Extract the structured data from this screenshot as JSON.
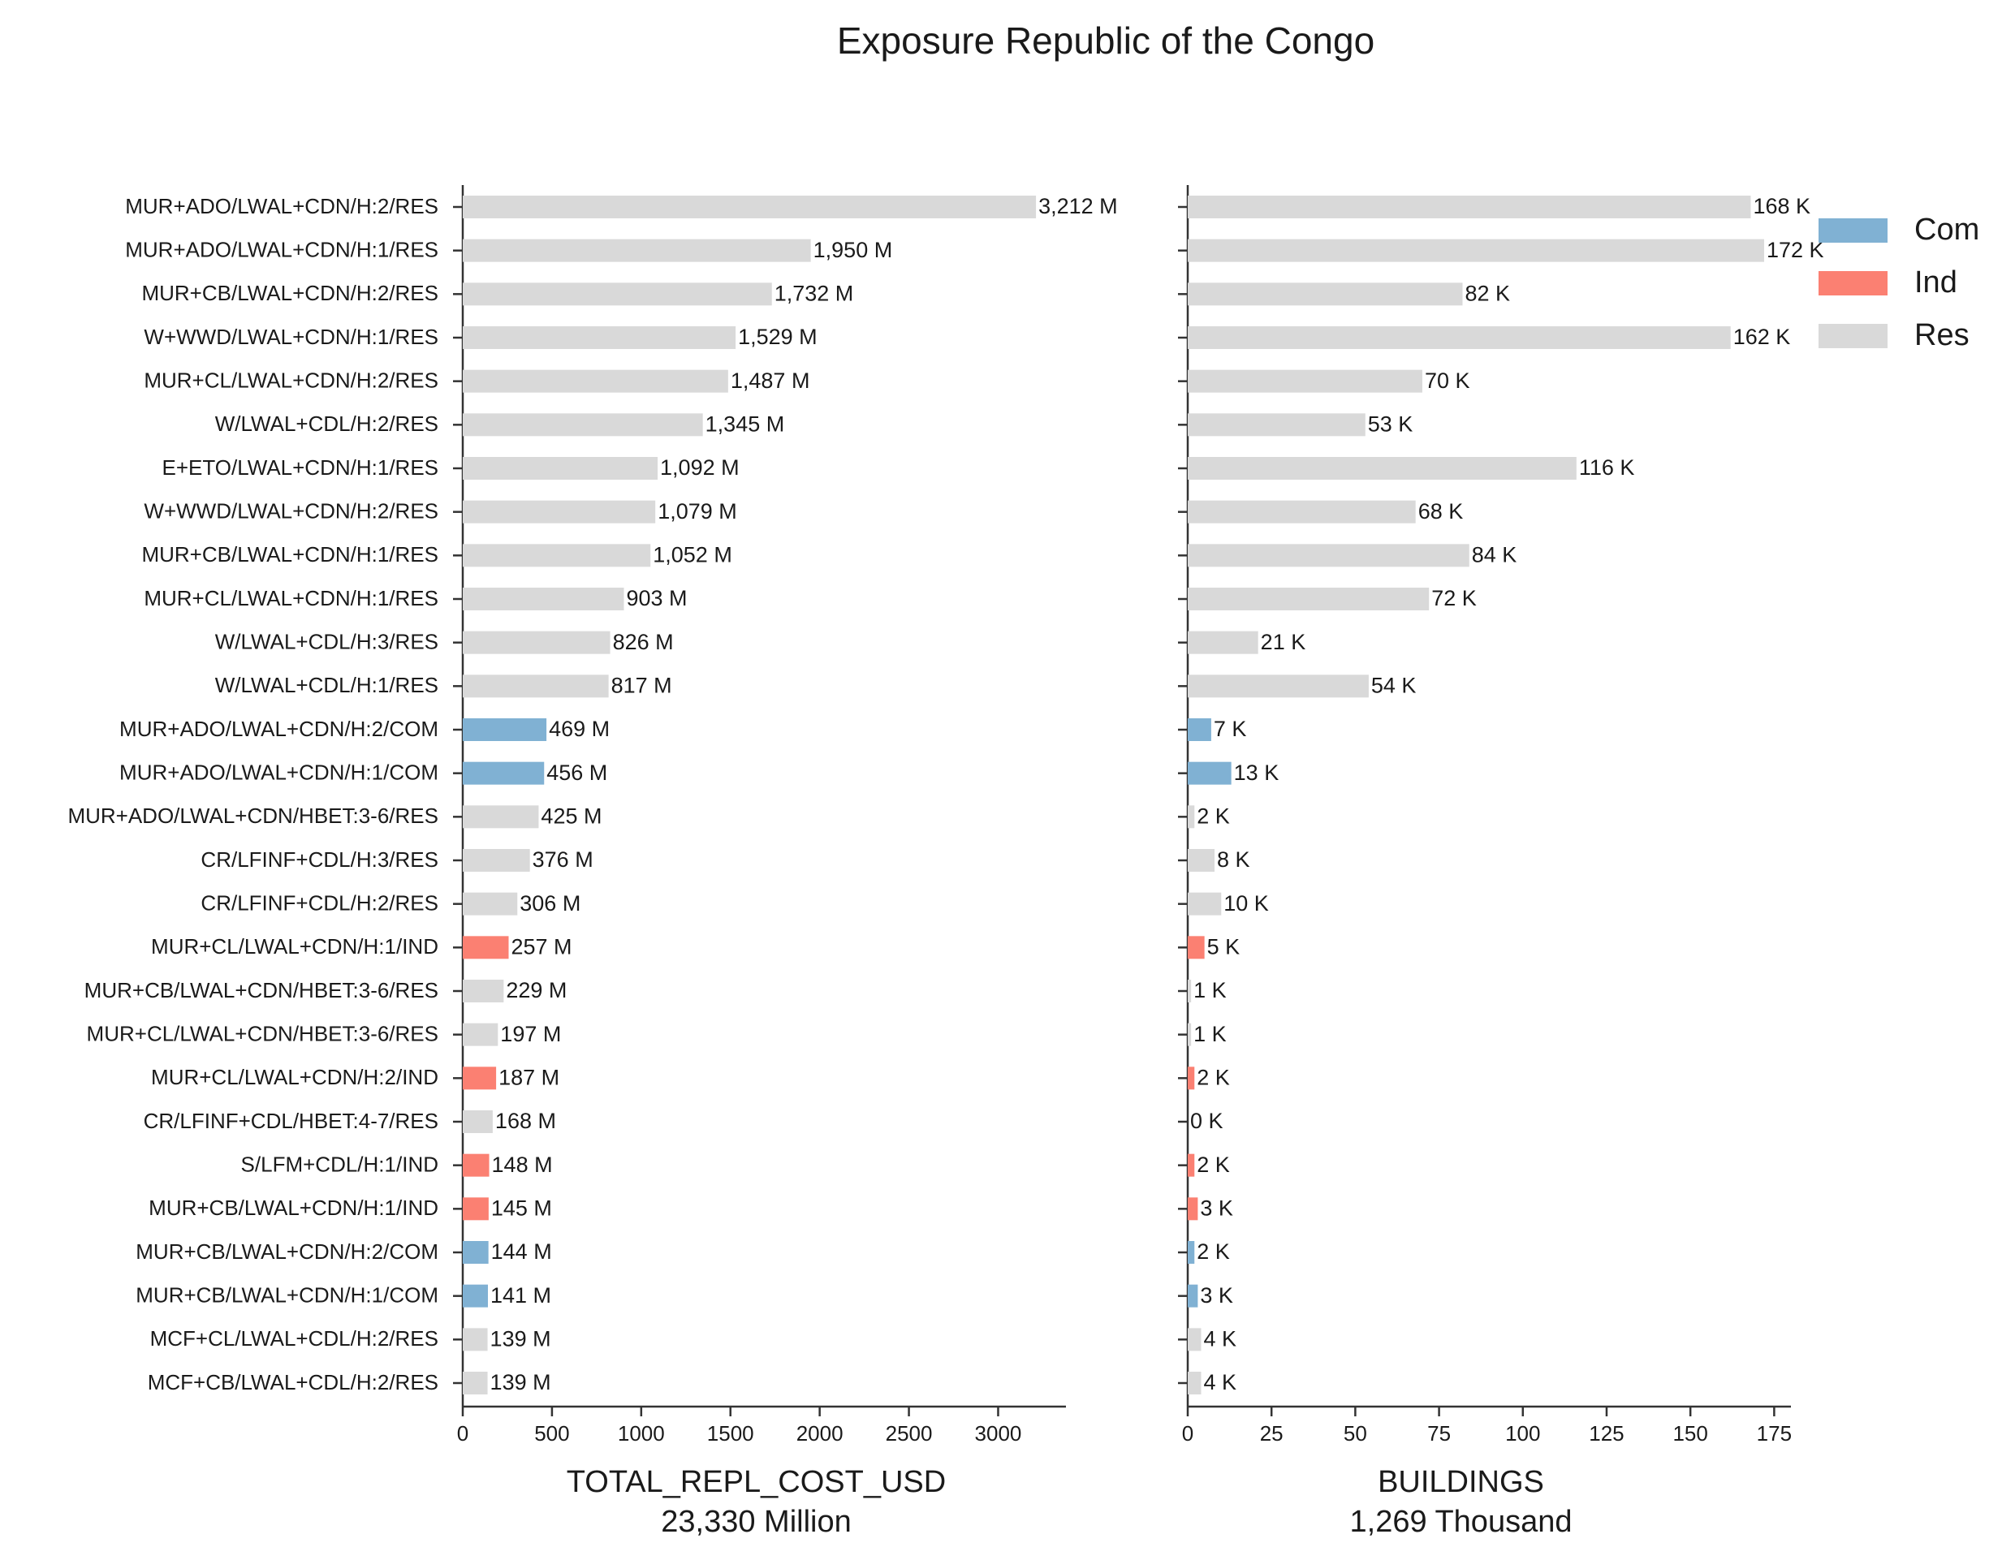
{
  "chart_data": {
    "type": "bar",
    "orientation": "horizontal",
    "title": "Exposure Republic of the Congo",
    "categories": [
      "MUR+ADO/LWAL+CDN/H:2/RES",
      "MUR+ADO/LWAL+CDN/H:1/RES",
      "MUR+CB/LWAL+CDN/H:2/RES",
      "W+WWD/LWAL+CDN/H:1/RES",
      "MUR+CL/LWAL+CDN/H:2/RES",
      "W/LWAL+CDL/H:2/RES",
      "E+ETO/LWAL+CDN/H:1/RES",
      "W+WWD/LWAL+CDN/H:2/RES",
      "MUR+CB/LWAL+CDN/H:1/RES",
      "MUR+CL/LWAL+CDN/H:1/RES",
      "W/LWAL+CDL/H:3/RES",
      "W/LWAL+CDL/H:1/RES",
      "MUR+ADO/LWAL+CDN/H:2/COM",
      "MUR+ADO/LWAL+CDN/H:1/COM",
      "MUR+ADO/LWAL+CDN/HBET:3-6/RES",
      "CR/LFINF+CDL/H:3/RES",
      "CR/LFINF+CDL/H:2/RES",
      "MUR+CL/LWAL+CDN/H:1/IND",
      "MUR+CB/LWAL+CDN/HBET:3-6/RES",
      "MUR+CL/LWAL+CDN/HBET:3-6/RES",
      "MUR+CL/LWAL+CDN/H:2/IND",
      "CR/LFINF+CDL/HBET:4-7/RES",
      "S/LFM+CDL/H:1/IND",
      "MUR+CB/LWAL+CDN/H:1/IND",
      "MUR+CB/LWAL+CDN/H:2/COM",
      "MUR+CB/LWAL+CDN/H:1/COM",
      "MCF+CL/LWAL+CDL/H:2/RES",
      "MCF+CB/LWAL+CDL/H:2/RES"
    ],
    "occupancy": [
      "Res",
      "Res",
      "Res",
      "Res",
      "Res",
      "Res",
      "Res",
      "Res",
      "Res",
      "Res",
      "Res",
      "Res",
      "Com",
      "Com",
      "Res",
      "Res",
      "Res",
      "Ind",
      "Res",
      "Res",
      "Ind",
      "Res",
      "Ind",
      "Ind",
      "Com",
      "Com",
      "Res",
      "Res"
    ],
    "legend": {
      "placement": "top-right",
      "entries": [
        {
          "name": "Com",
          "color": "#80b1d3"
        },
        {
          "name": "Ind",
          "color": "#fb8072"
        },
        {
          "name": "Res",
          "color": "#d9d9d9"
        }
      ]
    },
    "panels": [
      {
        "xlabel": "TOTAL_REPL_COST_USD",
        "subtitle": "23,330 Million",
        "xlim": [
          0,
          3380
        ],
        "ticks": [
          0,
          500,
          1000,
          1500,
          2000,
          2500,
          3000
        ],
        "values": [
          3212,
          1950,
          1732,
          1529,
          1487,
          1345,
          1092,
          1079,
          1052,
          903,
          826,
          817,
          469,
          456,
          425,
          376,
          306,
          257,
          229,
          197,
          187,
          168,
          148,
          145,
          144,
          141,
          139,
          139
        ],
        "value_labels": [
          "3,212 M",
          "1,950 M",
          "1,732 M",
          "1,529 M",
          "1,487 M",
          "1,345 M",
          "1,092 M",
          "1,079 M",
          "1,052 M",
          "903 M",
          "826 M",
          "817 M",
          "469 M",
          "456 M",
          "425 M",
          "376 M",
          "306 M",
          "257 M",
          "229 M",
          "197 M",
          "187 M",
          "168 M",
          "148 M",
          "145 M",
          "144 M",
          "141 M",
          "139 M",
          "139 M"
        ]
      },
      {
        "xlabel": "BUILDINGS",
        "subtitle": "1,269 Thousand",
        "xlim": [
          0,
          180
        ],
        "ticks": [
          0,
          25,
          50,
          75,
          100,
          125,
          150,
          175
        ],
        "values": [
          168,
          172,
          82,
          162,
          70,
          53,
          116,
          68,
          84,
          72,
          21,
          54,
          7,
          13,
          2,
          8,
          10,
          5,
          1,
          1,
          2,
          0,
          2,
          3,
          2,
          3,
          4,
          4
        ],
        "value_labels": [
          "168 K",
          "172 K",
          "82 K",
          "162 K",
          "70 K",
          "53 K",
          "116 K",
          "68 K",
          "84 K",
          "72 K",
          "21 K",
          "54 K",
          "7 K",
          "13 K",
          "2 K",
          "8 K",
          "10 K",
          "5 K",
          "1 K",
          "1 K",
          "2 K",
          "0 K",
          "2 K",
          "3 K",
          "2 K",
          "3 K",
          "4 K",
          "4 K"
        ]
      }
    ],
    "grid": false
  }
}
